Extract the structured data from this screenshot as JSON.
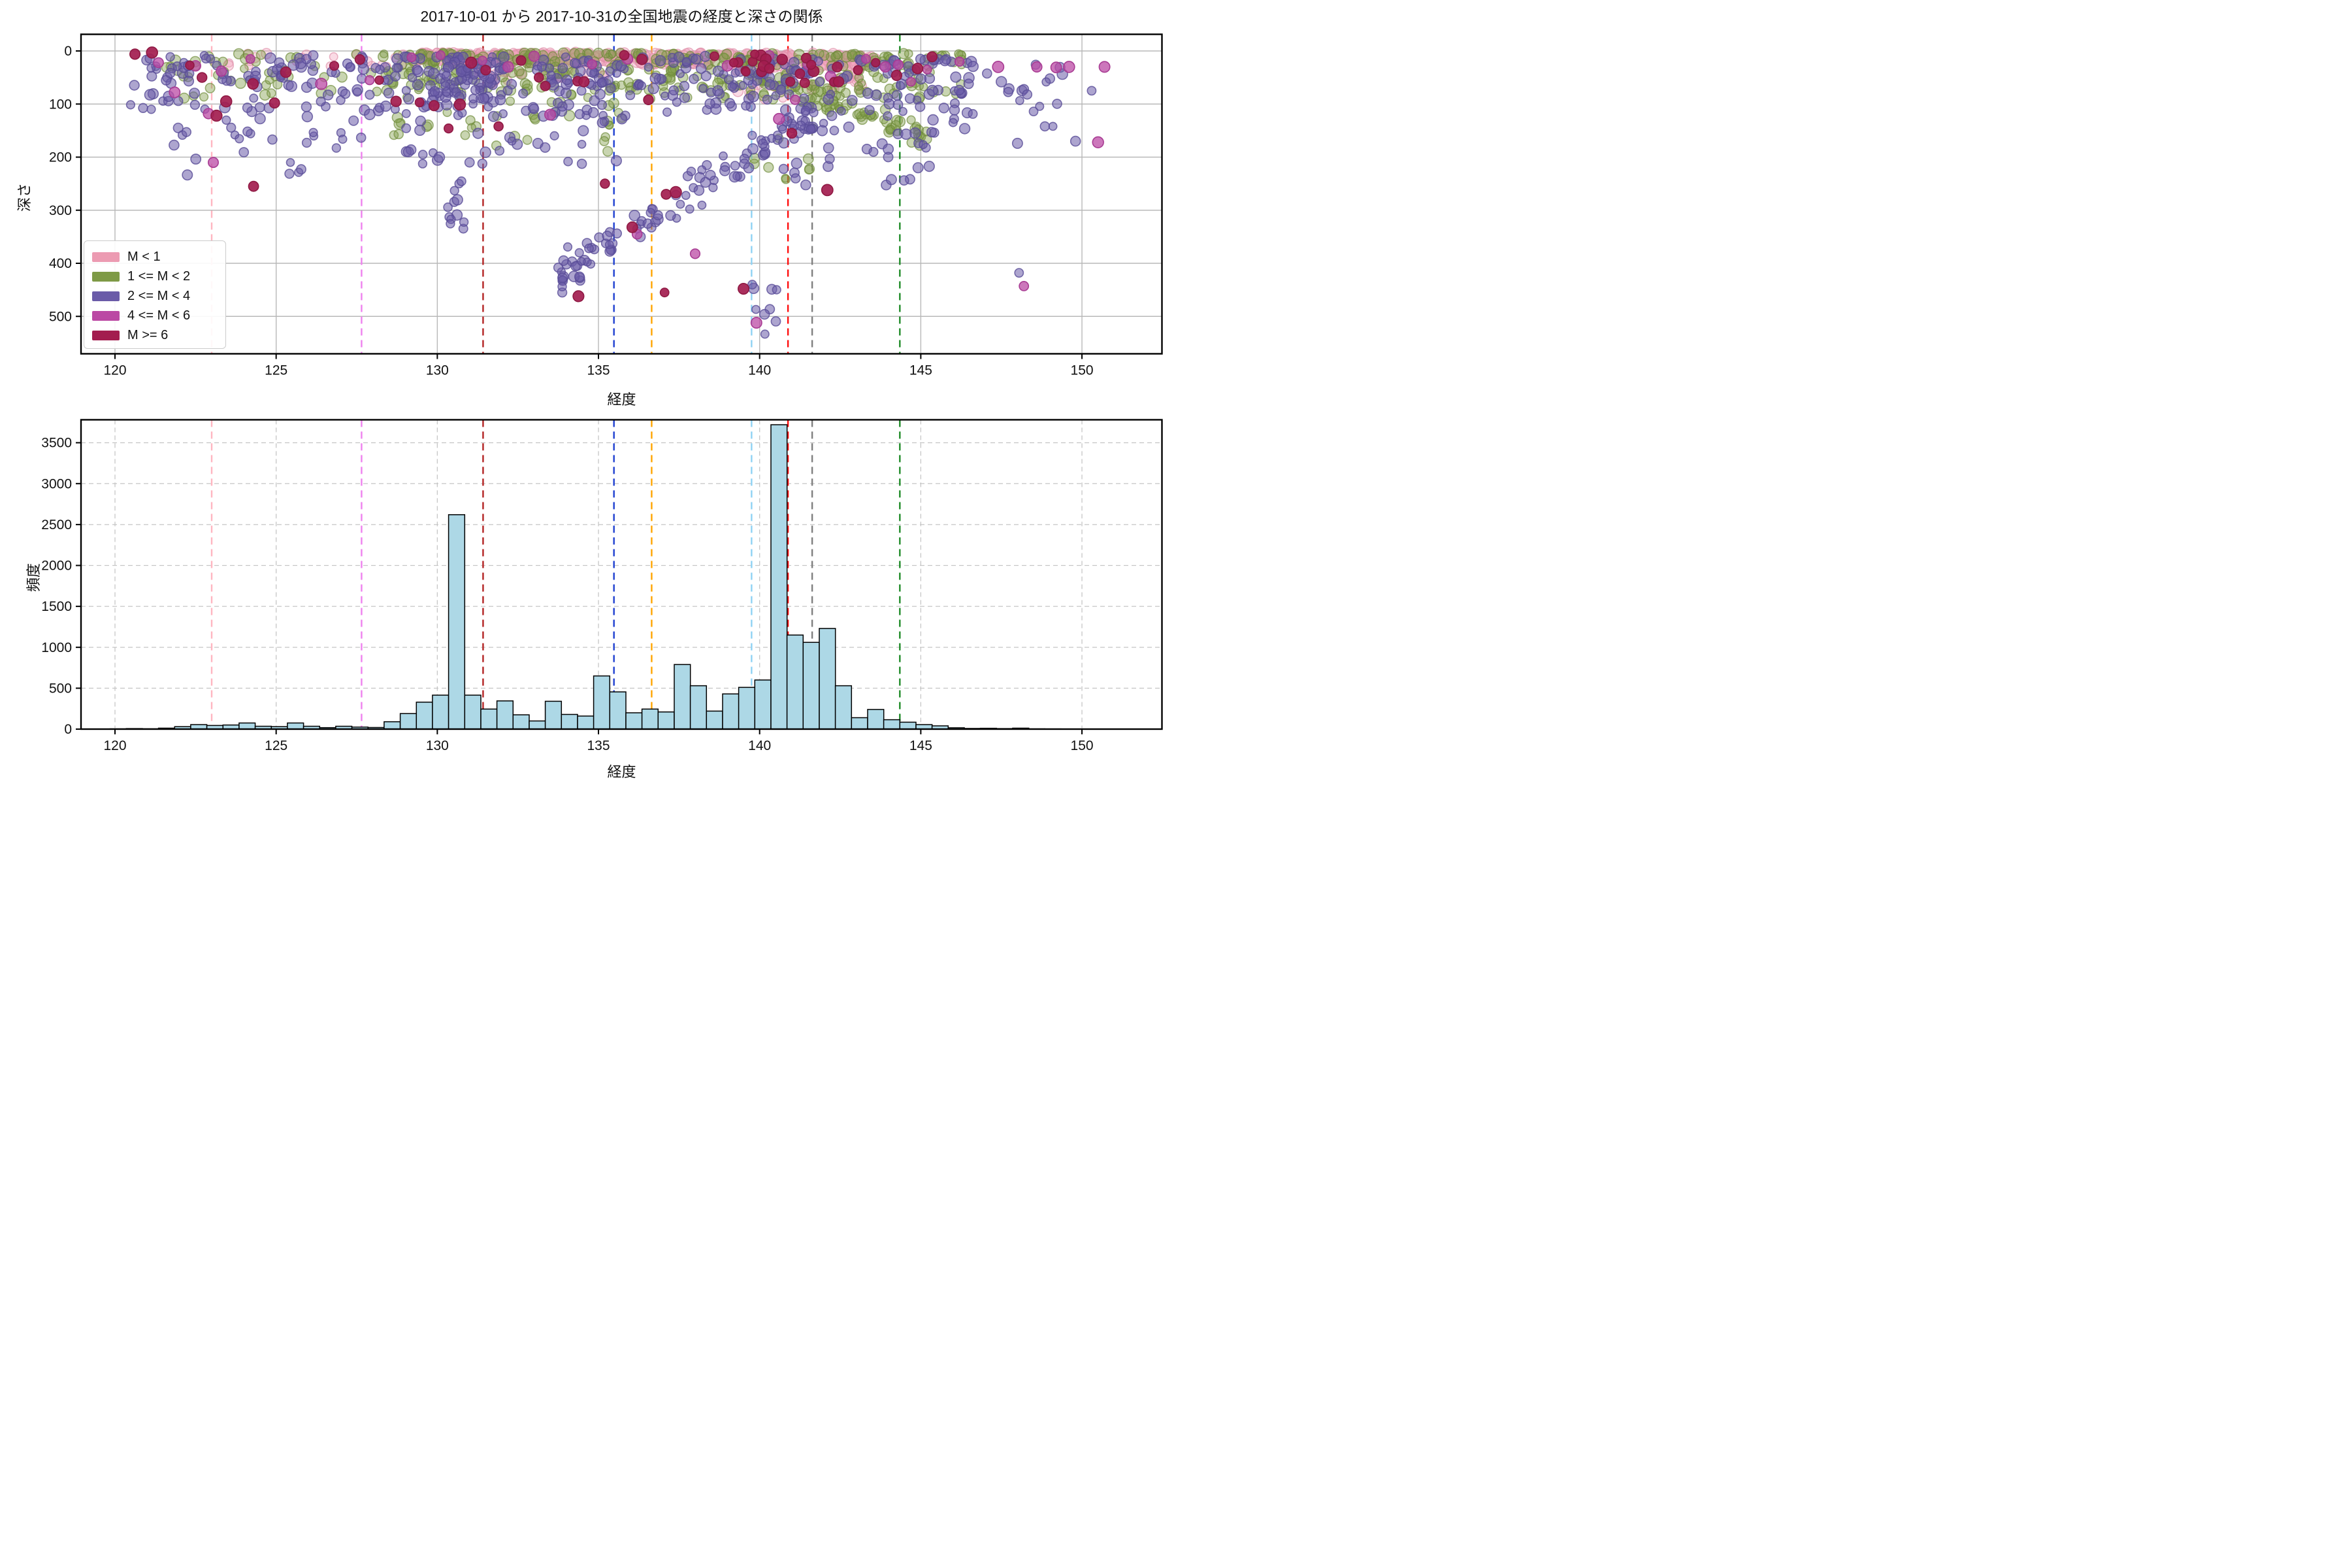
{
  "title": "2017-10-01 から 2017-10-31の全国地震の経度と深さの関係",
  "chart_data": [
    {
      "type": "scatter",
      "xlabel": "経度",
      "ylabel": "深さ",
      "xlim": [
        118.95,
        152.5
      ],
      "ylim": [
        568,
        -25
      ],
      "xticks": [
        120,
        125,
        130,
        135,
        140,
        145,
        150
      ],
      "yticks": [
        0,
        100,
        200,
        300,
        400,
        500
      ],
      "grid": "solid",
      "legend": {
        "position": "lower left",
        "entries": [
          {
            "label": "M < 1",
            "color": "#EC9BB2"
          },
          {
            "label": "1 <= M < 2",
            "color": "#7E9A46"
          },
          {
            "label": "2 <= M < 4",
            "color": "#6A5BA8"
          },
          {
            "label": "4 <= M < 6",
            "color": "#BB49A4"
          },
          {
            "label": "M >= 6",
            "color": "#A31D4F"
          }
        ]
      },
      "classes": {
        "pink": {
          "fill": "#F2A6BD",
          "edge": "#DE8FA9",
          "alpha": 0.4,
          "r": 7
        },
        "olive": {
          "fill": "#7E9A46",
          "edge": "#6E8A3A",
          "alpha": 0.42,
          "r": 7
        },
        "purple": {
          "fill": "#6A5BA8",
          "edge": "#594C97",
          "alpha": 0.55,
          "r": 7
        },
        "magenta": {
          "fill": "#BB49A4",
          "edge": "#A83C93",
          "alpha": 0.75,
          "r": 7.5
        },
        "crimson": {
          "fill": "#A31D4F",
          "edge": "#8F1943",
          "alpha": 0.92,
          "r": 7.5
        }
      },
      "clusters": [
        {
          "c": "pink",
          "x0": 129.4,
          "x1": 136.3,
          "y0": 2,
          "y1": 22,
          "n": 250
        },
        {
          "c": "pink",
          "x0": 136.3,
          "x1": 143.6,
          "y0": 3,
          "y1": 26,
          "n": 190
        },
        {
          "c": "pink",
          "x0": 139.2,
          "x1": 143.2,
          "y0": 25,
          "y1": 95,
          "n": 55,
          "pw": 1.5
        },
        {
          "c": "pink",
          "x0": 123.5,
          "x1": 129.4,
          "y0": 3,
          "y1": 30,
          "n": 22
        },
        {
          "c": "pink",
          "x0": 131.0,
          "x1": 135.2,
          "y0": 20,
          "y1": 70,
          "n": 30,
          "pw": 1.6
        },
        {
          "c": "olive",
          "x0": 128.3,
          "x1": 136.5,
          "y0": 4,
          "y1": 75,
          "n": 170,
          "pw": 1.6
        },
        {
          "c": "olive",
          "x0": 136.5,
          "x1": 146.3,
          "y0": 5,
          "y1": 90,
          "n": 195,
          "pw": 1.5
        },
        {
          "c": "olive",
          "x0": 140.2,
          "x1": 145.2,
          "y0": 60,
          "y1": 160,
          "n": 70,
          "dg": 1,
          "jit": 28
        },
        {
          "c": "olive",
          "x0": 121.2,
          "x1": 128.3,
          "y0": 5,
          "y1": 90,
          "n": 45,
          "pw": 1.6
        },
        {
          "c": "olive",
          "x0": 128.5,
          "x1": 136.0,
          "y0": 75,
          "y1": 190,
          "n": 45,
          "pw": 1.4
        },
        {
          "c": "olive",
          "x0": 139.5,
          "x1": 141.8,
          "y0": 140,
          "y1": 255,
          "n": 10
        },
        {
          "c": "purple",
          "x0": 120.4,
          "x1": 128.6,
          "y0": 8,
          "y1": 120,
          "n": 105,
          "pw": 1.25
        },
        {
          "c": "purple",
          "x0": 121.5,
          "x1": 128.5,
          "y0": 120,
          "y1": 235,
          "n": 28,
          "pw": 1.3
        },
        {
          "c": "purple",
          "x0": 128.6,
          "x1": 136.3,
          "y0": 10,
          "y1": 125,
          "n": 145,
          "pw": 1.2
        },
        {
          "c": "purple",
          "x0": 129.8,
          "x1": 131.7,
          "y0": 30,
          "y1": 95,
          "n": 40
        },
        {
          "c": "purple",
          "x0": 129.0,
          "x1": 136.0,
          "y0": 125,
          "y1": 215,
          "n": 30
        },
        {
          "c": "purple",
          "x0": 130.25,
          "x1": 130.85,
          "y0": 245,
          "y1": 335,
          "n": 12
        },
        {
          "c": "purple",
          "x0": 133.9,
          "x1": 134.9,
          "y0": 355,
          "y1": 445,
          "n": 7
        },
        {
          "c": "purple",
          "x0": 133.6,
          "x1": 141.6,
          "y0": 430,
          "y1": 120,
          "n": 100,
          "dg": 1,
          "jit": 40
        },
        {
          "c": "purple",
          "x0": 139.6,
          "x1": 140.6,
          "y0": 435,
          "y1": 548,
          "n": 9
        },
        {
          "c": "purple",
          "x0": 136.3,
          "x1": 139.8,
          "y0": 10,
          "y1": 120,
          "n": 55,
          "pw": 1.3
        },
        {
          "c": "purple",
          "x0": 139.8,
          "x1": 146.6,
          "y0": 15,
          "y1": 255,
          "n": 150,
          "pw": 1.5
        },
        {
          "c": "purple",
          "x0": 146.6,
          "x1": 149.5,
          "y0": 25,
          "y1": 130,
          "n": 14,
          "pw": 1.2
        },
        {
          "c": "crimson",
          "x0": 139.3,
          "x1": 142.6,
          "y0": 8,
          "y1": 60,
          "n": 12
        }
      ],
      "points": {
        "magenta": [
          [
            121.35,
            22
          ],
          [
            121.85,
            78
          ],
          [
            122.5,
            28
          ],
          [
            122.9,
            118
          ],
          [
            123.05,
            210
          ],
          [
            123.3,
            38
          ],
          [
            124.2,
            15
          ],
          [
            126.4,
            62
          ],
          [
            127.9,
            55
          ],
          [
            129.2,
            12
          ],
          [
            130.1,
            8
          ],
          [
            131.4,
            18
          ],
          [
            132.2,
            30
          ],
          [
            133.0,
            10
          ],
          [
            133.5,
            120
          ],
          [
            134.8,
            25
          ],
          [
            135.9,
            15
          ],
          [
            136.2,
            345
          ],
          [
            138.0,
            382
          ],
          [
            139.0,
            28
          ],
          [
            139.9,
            512
          ],
          [
            140.3,
            8
          ],
          [
            140.6,
            128
          ],
          [
            141.1,
            92
          ],
          [
            141.5,
            25
          ],
          [
            142.2,
            48
          ],
          [
            143.3,
            15
          ],
          [
            143.9,
            30
          ],
          [
            144.3,
            26
          ],
          [
            144.7,
            58
          ],
          [
            145.2,
            35
          ],
          [
            146.2,
            20
          ],
          [
            147.4,
            30
          ],
          [
            148.6,
            30
          ],
          [
            149.2,
            31
          ],
          [
            149.6,
            30
          ],
          [
            150.7,
            30
          ],
          [
            150.5,
            172
          ],
          [
            148.2,
            443
          ]
        ],
        "crimson": [
          [
            120.62,
            6
          ],
          [
            121.15,
            3
          ],
          [
            122.32,
            27
          ],
          [
            122.7,
            50
          ],
          [
            123.15,
            122
          ],
          [
            123.45,
            95
          ],
          [
            124.28,
            62
          ],
          [
            124.3,
            255
          ],
          [
            124.95,
            98
          ],
          [
            125.3,
            40
          ],
          [
            126.8,
            28
          ],
          [
            127.6,
            16
          ],
          [
            128.2,
            55
          ],
          [
            128.72,
            95
          ],
          [
            129.45,
            97
          ],
          [
            129.9,
            103
          ],
          [
            130.35,
            146
          ],
          [
            130.7,
            101
          ],
          [
            131.05,
            22
          ],
          [
            131.5,
            36
          ],
          [
            131.9,
            142
          ],
          [
            132.6,
            18
          ],
          [
            133.15,
            50
          ],
          [
            133.35,
            66
          ],
          [
            134.35,
            57
          ],
          [
            134.55,
            58
          ],
          [
            134.38,
            462
          ],
          [
            135.2,
            250
          ],
          [
            136.05,
            332
          ],
          [
            135.8,
            8
          ],
          [
            136.35,
            16
          ],
          [
            136.55,
            92
          ],
          [
            137.1,
            270
          ],
          [
            137.4,
            266
          ],
          [
            137.05,
            455
          ],
          [
            139.5,
            448
          ],
          [
            138.6,
            10
          ],
          [
            139.2,
            22
          ],
          [
            139.85,
            6
          ],
          [
            140.3,
            33
          ],
          [
            140.7,
            16
          ],
          [
            141.0,
            155
          ],
          [
            140.95,
            58
          ],
          [
            141.25,
            43
          ],
          [
            141.4,
            60
          ],
          [
            141.6,
            26
          ],
          [
            142.1,
            262
          ],
          [
            142.45,
            58
          ],
          [
            143.05,
            36
          ],
          [
            143.6,
            22
          ],
          [
            144.25,
            46
          ],
          [
            144.9,
            33
          ],
          [
            145.35,
            11
          ]
        ],
        "purple": [
          [
            148.05,
            418
          ],
          [
            148.0,
            174
          ],
          [
            149.8,
            170
          ],
          [
            148.5,
            114
          ],
          [
            148.85,
            142
          ],
          [
            149.1,
            142
          ],
          [
            148.2,
            72
          ],
          [
            148.3,
            82
          ],
          [
            147.5,
            58
          ],
          [
            150.3,
            75
          ]
        ]
      },
      "vlines": [
        {
          "x": 123.0,
          "color": "#FFB6C1"
        },
        {
          "x": 127.65,
          "color": "#EE82EE"
        },
        {
          "x": 131.42,
          "color": "#B22222"
        },
        {
          "x": 135.48,
          "color": "#1E3FD0"
        },
        {
          "x": 136.65,
          "color": "#FFA500"
        },
        {
          "x": 139.75,
          "color": "#8FD2F4"
        },
        {
          "x": 140.88,
          "color": "#FF0D0D"
        },
        {
          "x": 141.63,
          "color": "#7F7F7F"
        },
        {
          "x": 144.35,
          "color": "#1F8B28"
        }
      ]
    },
    {
      "type": "histogram",
      "xlabel": "経度",
      "ylabel": "頻度",
      "bar_color": "#ADD8E6",
      "bar_edge": "#000000",
      "xlim": [
        118.95,
        152.5
      ],
      "ylim": [
        0,
        3776
      ],
      "xticks": [
        120,
        125,
        130,
        135,
        140,
        145,
        150
      ],
      "yticks": [
        0,
        500,
        1000,
        1500,
        2000,
        2500,
        3000,
        3500
      ],
      "grid": "dashed",
      "bin_start": 119.85,
      "bin_width": 0.5,
      "counts": [
        3,
        6,
        4,
        12,
        30,
        55,
        45,
        50,
        75,
        35,
        30,
        75,
        35,
        18,
        35,
        25,
        20,
        90,
        190,
        330,
        415,
        2620,
        415,
        245,
        345,
        175,
        100,
        340,
        180,
        160,
        650,
        455,
        200,
        245,
        210,
        790,
        530,
        220,
        430,
        510,
        600,
        3720,
        1150,
        1060,
        1230,
        530,
        140,
        240,
        115,
        85,
        55,
        40,
        17,
        8,
        10,
        6,
        12,
        3,
        2
      ],
      "vlines": [
        {
          "x": 123.0,
          "color": "#FFB6C1"
        },
        {
          "x": 127.65,
          "color": "#EE82EE"
        },
        {
          "x": 131.42,
          "color": "#B22222"
        },
        {
          "x": 135.48,
          "color": "#1E3FD0"
        },
        {
          "x": 136.65,
          "color": "#FFA500"
        },
        {
          "x": 139.75,
          "color": "#8FD2F4"
        },
        {
          "x": 140.88,
          "color": "#FF0D0D"
        },
        {
          "x": 141.63,
          "color": "#7F7F7F"
        },
        {
          "x": 144.35,
          "color": "#1F8B28"
        }
      ]
    }
  ]
}
